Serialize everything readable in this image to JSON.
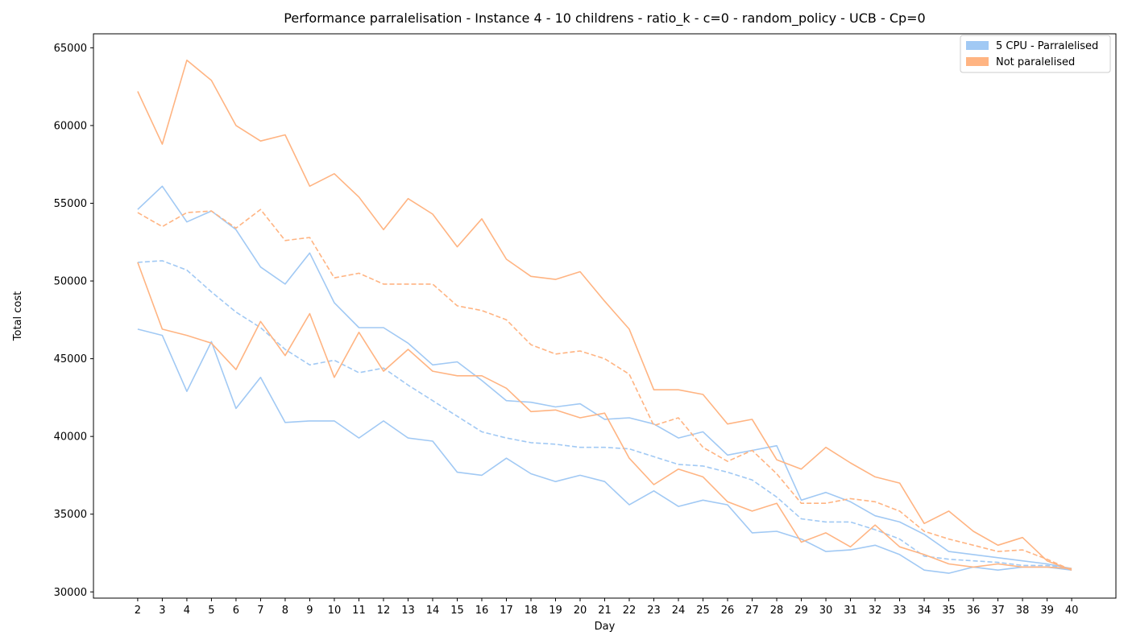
{
  "chart_data": {
    "type": "line",
    "title": "Performance parralelisation - Instance 4 - 10 childrens - ratio_k - c=0 - random_policy - UCB - Cp=0",
    "xlabel": "Day",
    "ylabel": "Total cost",
    "xlim": [
      0.2,
      41.8
    ],
    "ylim": [
      29600,
      65900
    ],
    "x_ticks": [
      2,
      3,
      4,
      5,
      6,
      7,
      8,
      9,
      10,
      11,
      12,
      13,
      14,
      15,
      16,
      17,
      18,
      19,
      20,
      21,
      22,
      23,
      24,
      25,
      26,
      27,
      28,
      29,
      30,
      31,
      32,
      33,
      34,
      35,
      36,
      37,
      38,
      39,
      40
    ],
    "y_ticks": [
      30000,
      35000,
      40000,
      45000,
      50000,
      55000,
      60000,
      65000
    ],
    "grid": false,
    "legend_position": "top-right",
    "legend": [
      {
        "label": "5 CPU - Parralelised",
        "color": "#a1c9f4"
      },
      {
        "label": "Not paralelised",
        "color": "#ffb482"
      }
    ],
    "x": [
      2,
      3,
      4,
      5,
      6,
      7,
      8,
      9,
      10,
      11,
      12,
      13,
      14,
      15,
      16,
      17,
      18,
      19,
      20,
      21,
      22,
      23,
      24,
      25,
      26,
      27,
      28,
      29,
      30,
      31,
      32,
      33,
      34,
      35,
      36,
      37,
      38,
      39,
      40
    ],
    "series": [
      {
        "group": "5 CPU - Parralelised",
        "style": "solid",
        "color": "#a1c9f4",
        "values": [
          54600,
          56100,
          53800,
          54500,
          53300,
          50900,
          49800,
          51800,
          48600,
          47000,
          47000,
          46000,
          44600,
          44800,
          43600,
          42300,
          42200,
          41900,
          42100,
          41100,
          41200,
          40800,
          39900,
          40300,
          38800,
          39100,
          39400,
          35900,
          36400,
          35800,
          34900,
          34500,
          33700,
          32600,
          32400,
          32200,
          32000,
          31800,
          31500
        ]
      },
      {
        "group": "5 CPU - Parralelised",
        "style": "dashed",
        "color": "#a1c9f4",
        "values": [
          51200,
          51300,
          50700,
          49300,
          48000,
          47000,
          45600,
          44600,
          44900,
          44100,
          44400,
          43300,
          42300,
          41300,
          40300,
          39900,
          39600,
          39500,
          39300,
          39300,
          39200,
          38700,
          38200,
          38100,
          37700,
          37200,
          36100,
          34700,
          34500,
          34500,
          34000,
          33400,
          32300,
          32100,
          32000,
          31900,
          31700,
          31700,
          31500
        ]
      },
      {
        "group": "5 CPU - Parralelised",
        "style": "solid",
        "color": "#a1c9f4",
        "values": [
          46900,
          46500,
          42900,
          46100,
          41800,
          43800,
          40900,
          41000,
          41000,
          39900,
          41000,
          39900,
          39700,
          37700,
          37500,
          38600,
          37600,
          37100,
          37500,
          37100,
          35600,
          36500,
          35500,
          35900,
          35600,
          33800,
          33900,
          33400,
          32600,
          32700,
          33000,
          32400,
          31400,
          31200,
          31600,
          31400,
          31600,
          31600,
          31400
        ]
      },
      {
        "group": "Not paralelised",
        "style": "solid",
        "color": "#ffb482",
        "values": [
          62200,
          58800,
          64200,
          62900,
          60000,
          59000,
          59400,
          56100,
          56900,
          55400,
          53300,
          55300,
          54300,
          52200,
          54000,
          51400,
          50300,
          50100,
          50600,
          48700,
          46900,
          43000,
          43000,
          42700,
          40800,
          41100,
          38500,
          37900,
          39300,
          38300,
          37400,
          37000,
          34400,
          35200,
          33900,
          33000,
          33500,
          32000,
          31400
        ]
      },
      {
        "group": "Not paralelised",
        "style": "dashed",
        "color": "#ffb482",
        "values": [
          54400,
          53500,
          54400,
          54500,
          53400,
          54600,
          52600,
          52800,
          50200,
          50500,
          49800,
          49800,
          49800,
          48400,
          48100,
          47500,
          45900,
          45300,
          45500,
          45000,
          44000,
          40700,
          41200,
          39300,
          38400,
          39100,
          37600,
          35700,
          35700,
          36000,
          35800,
          35200,
          33900,
          33400,
          33000,
          32600,
          32700,
          32100,
          31400
        ]
      },
      {
        "group": "Not paralelised",
        "style": "solid",
        "color": "#ffb482",
        "values": [
          51200,
          46900,
          46500,
          46000,
          44300,
          47400,
          45200,
          47900,
          43800,
          46700,
          44200,
          45600,
          44200,
          43900,
          43900,
          43100,
          41600,
          41700,
          41200,
          41500,
          38600,
          36900,
          37900,
          37400,
          35800,
          35200,
          35700,
          33200,
          33800,
          32900,
          34300,
          32900,
          32400,
          31800,
          31600,
          31800,
          31600,
          31600,
          31500
        ]
      }
    ]
  }
}
